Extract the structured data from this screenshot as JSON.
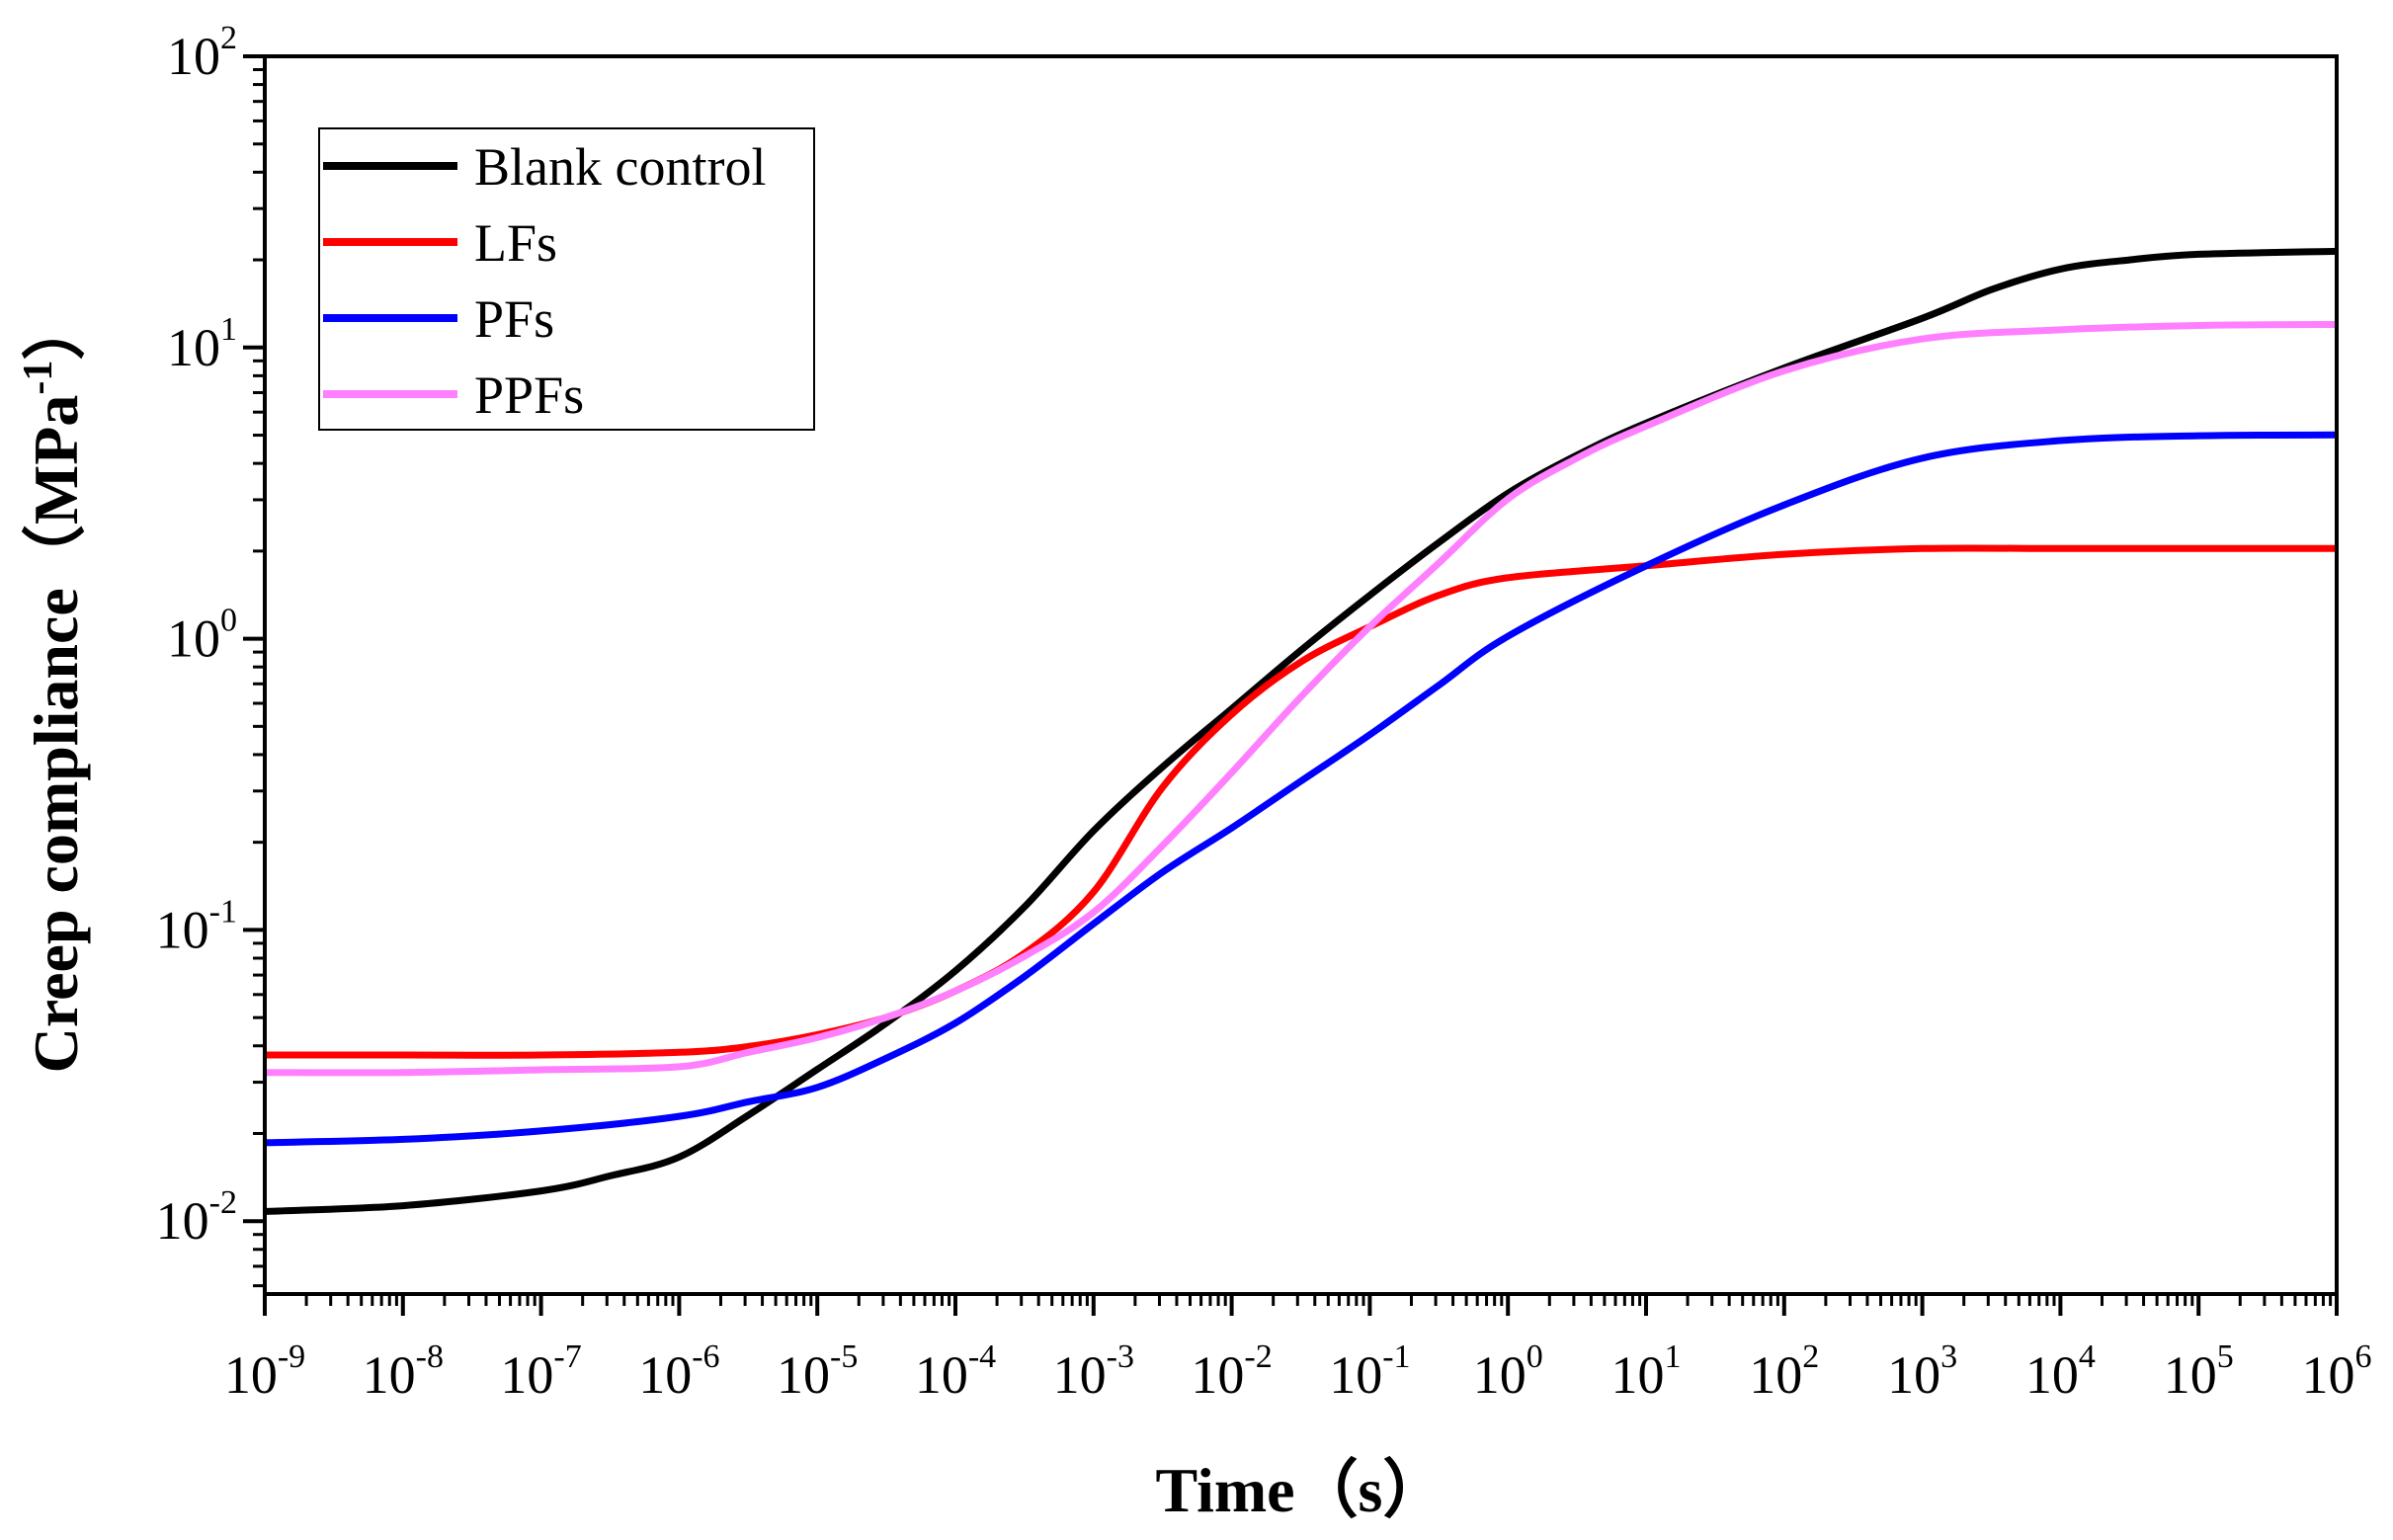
{
  "chart_data": {
    "type": "line",
    "xlabel": "Time（s）",
    "ylabel": "Creep compliance（MPa⁻¹）",
    "ylabel_parts": {
      "base": "Creep compliance（MPa",
      "exp": "-1",
      "close": "）"
    },
    "x_scale": "log",
    "y_scale": "log",
    "xlim": [
      1e-09,
      1000000.0
    ],
    "ylim": [
      0.00562,
      100
    ],
    "x_ticks": [
      {
        "base": "10",
        "exp": "-9",
        "value": -9
      },
      {
        "base": "10",
        "exp": "-8",
        "value": -8
      },
      {
        "base": "10",
        "exp": "-7",
        "value": -7
      },
      {
        "base": "10",
        "exp": "-6",
        "value": -6
      },
      {
        "base": "10",
        "exp": "-5",
        "value": -5
      },
      {
        "base": "10",
        "exp": "-4",
        "value": -4
      },
      {
        "base": "10",
        "exp": "-3",
        "value": -3
      },
      {
        "base": "10",
        "exp": "-2",
        "value": -2
      },
      {
        "base": "10",
        "exp": "-1",
        "value": -1
      },
      {
        "base": "10",
        "exp": "0",
        "value": 0
      },
      {
        "base": "10",
        "exp": "1",
        "value": 1
      },
      {
        "base": "10",
        "exp": "2",
        "value": 2
      },
      {
        "base": "10",
        "exp": "3",
        "value": 3
      },
      {
        "base": "10",
        "exp": "4",
        "value": 4
      },
      {
        "base": "10",
        "exp": "5",
        "value": 5
      },
      {
        "base": "10",
        "exp": "6",
        "value": 6
      }
    ],
    "y_ticks": [
      {
        "base": "10",
        "exp": "-2",
        "value": -2
      },
      {
        "base": "10",
        "exp": "-1",
        "value": -1
      },
      {
        "base": "10",
        "exp": "0",
        "value": 0
      },
      {
        "base": "10",
        "exp": "1",
        "value": 1
      },
      {
        "base": "10",
        "exp": "2",
        "value": 2
      }
    ],
    "legend_position": "top-left",
    "series": [
      {
        "name": "Blank control",
        "color": "#000000",
        "x_log10": [
          -9,
          -8,
          -7,
          -6.5,
          -6,
          -5.5,
          -5,
          -4.5,
          -4,
          -3.5,
          -3,
          -2.5,
          -2,
          -1.5,
          -1,
          -0.5,
          0,
          0.5,
          1,
          2,
          3,
          3.5,
          4,
          4.5,
          5,
          6
        ],
        "y": [
          0.0108,
          0.0113,
          0.0127,
          0.0143,
          0.0166,
          0.0231,
          0.0332,
          0.0479,
          0.0724,
          0.12,
          0.219,
          0.363,
          0.575,
          0.912,
          1.41,
          2.14,
          3.16,
          4.27,
          5.5,
          8.51,
          12.6,
          15.8,
          18.6,
          20.0,
          20.9,
          21.4
        ]
      },
      {
        "name": "LFs",
        "color": "#ff0000",
        "x_log10": [
          -9,
          -8,
          -7,
          -6,
          -5.5,
          -5,
          -4.5,
          -4,
          -3.5,
          -3,
          -2.5,
          -2,
          -1.5,
          -1,
          -0.5,
          0,
          1,
          2,
          3,
          4,
          5,
          6
        ],
        "y": [
          0.0372,
          0.0372,
          0.0372,
          0.038,
          0.0398,
          0.0437,
          0.0501,
          0.0617,
          0.0832,
          0.135,
          0.309,
          0.55,
          0.832,
          1.1,
          1.41,
          1.62,
          1.78,
          1.95,
          2.04,
          2.04,
          2.04,
          2.04
        ]
      },
      {
        "name": "PFs",
        "color": "#0000ff",
        "x_log10": [
          -9,
          -8,
          -7,
          -6,
          -5.5,
          -5,
          -4.5,
          -4,
          -3.5,
          -3,
          -2.5,
          -2,
          -1.5,
          -1,
          -0.5,
          0,
          1,
          2,
          3,
          4,
          5,
          6
        ],
        "y": [
          0.0186,
          0.0191,
          0.0204,
          0.0229,
          0.0257,
          0.0288,
          0.0363,
          0.0479,
          0.0692,
          0.105,
          0.158,
          0.224,
          0.324,
          0.468,
          0.692,
          1.02,
          1.78,
          2.88,
          4.17,
          4.79,
          4.98,
          5.01
        ]
      },
      {
        "name": "PPFs",
        "color": "#ff80ff",
        "x_log10": [
          -9,
          -8,
          -7,
          -6,
          -5.5,
          -5,
          -4.5,
          -4,
          -3.5,
          -3,
          -2.5,
          -2,
          -1.5,
          -1,
          -0.5,
          0,
          0.5,
          1,
          2,
          3,
          4,
          5,
          6
        ],
        "y": [
          0.0324,
          0.0324,
          0.0331,
          0.0339,
          0.038,
          0.0427,
          0.0501,
          0.0617,
          0.0812,
          0.115,
          0.195,
          0.347,
          0.631,
          1.1,
          1.82,
          3.02,
          4.17,
          5.37,
          8.32,
          10.7,
          11.5,
          11.9,
          12.0
        ]
      }
    ]
  }
}
